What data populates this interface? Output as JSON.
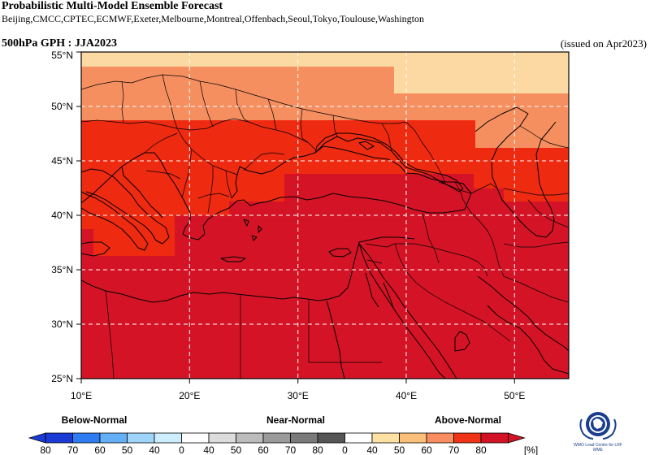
{
  "header": {
    "title": "Probabilistic Multi-Model Ensemble Forecast",
    "centres": "Beijing,CMCC,CPTEC,ECMWF,Exeter,Melbourne,Montreal,Offenbach,Seoul,Tokyo,Toulouse,Washington",
    "variable": "500hPa GPH : JJA2023",
    "issued": "(issued on Apr2023)"
  },
  "axes": {
    "lon_labels": [
      "10°E",
      "20°E",
      "30°E",
      "40°E",
      "50°E"
    ],
    "lat_labels": [
      "25°N",
      "30°N",
      "35°N",
      "40°N",
      "45°N",
      "50°N",
      "55°N"
    ],
    "lon_range": [
      10,
      55
    ],
    "lat_range": [
      25,
      55.5
    ],
    "grid": true
  },
  "legend": {
    "categories": [
      "Below-Normal",
      "Near-Normal",
      "Above-Normal"
    ],
    "ticks": [
      "80",
      "70",
      "60",
      "50",
      "40",
      "0",
      "40",
      "50",
      "60",
      "70",
      "80",
      "0",
      "40",
      "50",
      "60",
      "70",
      "80"
    ],
    "unit": "[%]",
    "colors": [
      "#1a3ad8",
      "#2f7bf1",
      "#64b0f7",
      "#9fd4fb",
      "#cdeefd",
      "#ffffff",
      "#dcdcdc",
      "#bcbcbc",
      "#9a9a9a",
      "#7a7a7a",
      "#555555",
      "#ffffff",
      "#fde0a4",
      "#fcc07b",
      "#f98d5f",
      "#ef3316",
      "#d41226"
    ]
  },
  "logo": {
    "text": "WMO Lead Centre for LRF MME"
  },
  "probability_bands": [
    {
      "prob": "40-50",
      "color": "#fcd9a2"
    },
    {
      "prob": "50-60",
      "color": "#f68f60"
    },
    {
      "prob": "60-70",
      "color": "#ee2a10"
    },
    {
      "prob": "70-80",
      "color": "#d41426"
    }
  ]
}
